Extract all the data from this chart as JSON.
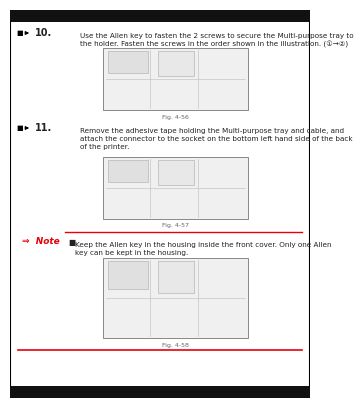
{
  "bg_color": "#ffffff",
  "outer_border_color": "#000000",
  "red_color": "#e8000a",
  "text_color": "#222222",
  "gray_text": "#666666",
  "fig_bg": "#f0f0f0",
  "fig_border": "#888888",
  "fig_inner_color": "#d0d0d0",
  "arrow_symbol": "→",
  "filled_arrow": "↠",
  "step10_num": "10.",
  "step10_text": "Use the Allen key to fasten the 2 screws to secure the Multi-purpose tray to\nthe holder. Fasten the screws in the order shown in the illustration. (①→②)",
  "fig56_label": "Fig. 4-56",
  "step11_num": "11.",
  "step11_text": "Remove the adhesive tape holding the Multi-purpose tray and cable, and\nattach the connector to the socket on the bottom left hand side of the back\nof the printer.",
  "fig57_label": "Fig. 4-57",
  "note_label": "⇒  Note",
  "note_bullet": "■",
  "note_text": "Keep the Allen key in the housing inside the front cover. Only one Allen\nkey can be kept in the housing.",
  "fig58_label": "Fig. 4-58"
}
